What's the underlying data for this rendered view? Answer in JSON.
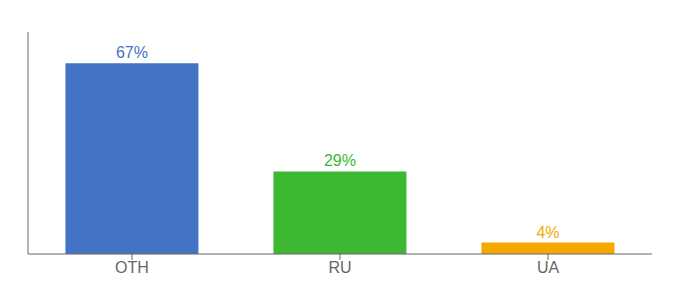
{
  "chart_data": {
    "type": "bar",
    "categories": [
      "OTH",
      "RU",
      "UA"
    ],
    "values": [
      67,
      29,
      4
    ],
    "colors": [
      "#4472c4",
      "#3cb832",
      "#f5a800"
    ],
    "ylim": [
      0,
      78
    ],
    "tick_labels": "x",
    "data_labels": true,
    "value_labels": [
      "67%",
      "29%",
      "4%"
    ],
    "grid": false
  }
}
